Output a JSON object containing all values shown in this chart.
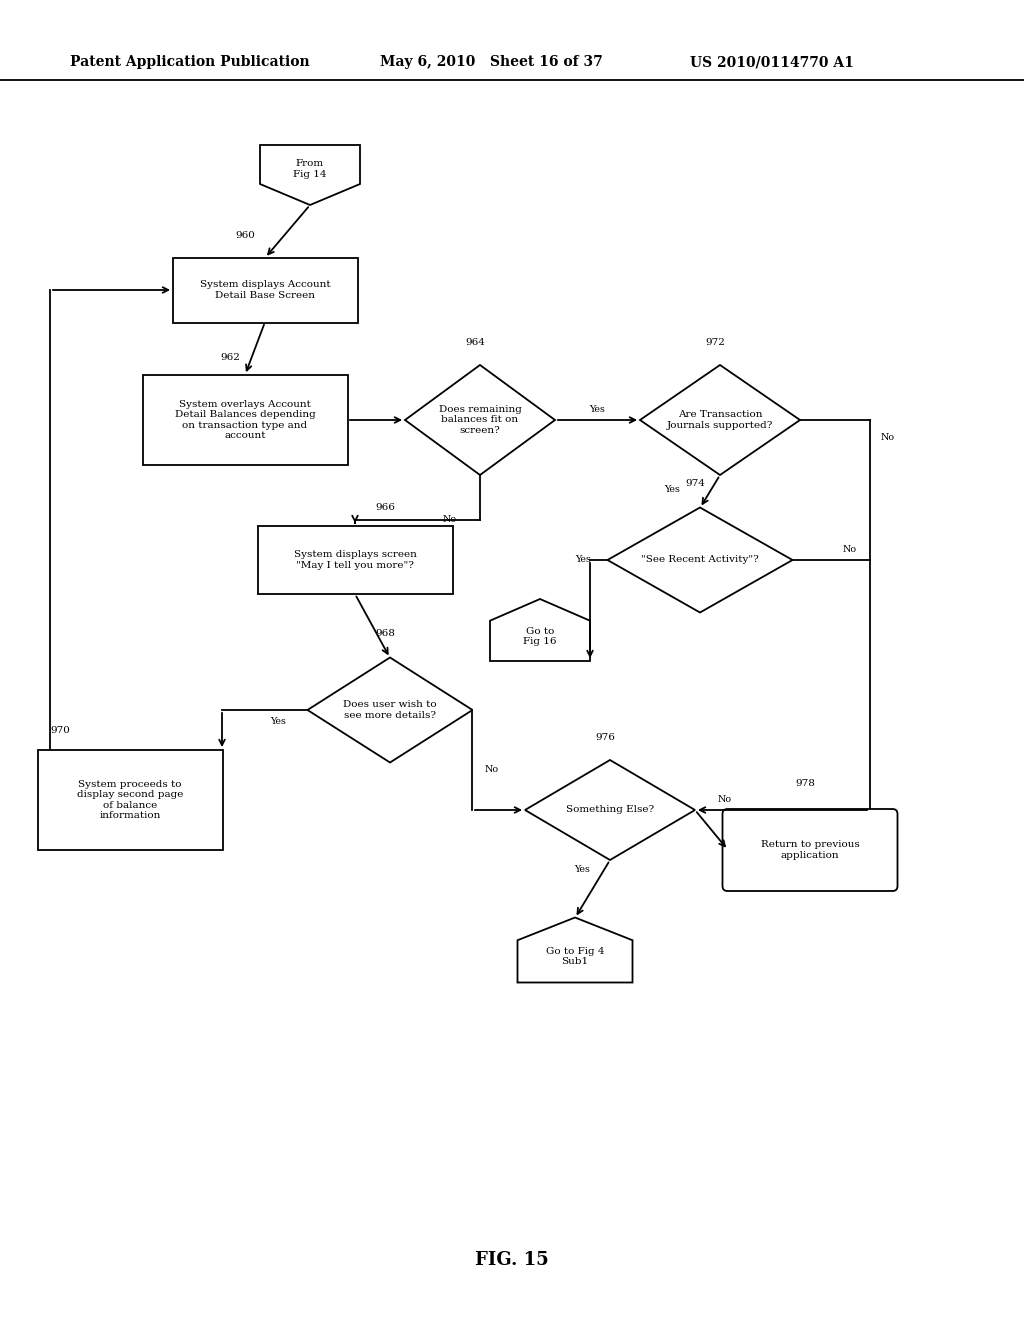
{
  "header_left": "Patent Application Publication",
  "header_mid": "May 6, 2010   Sheet 16 of 37",
  "header_right": "US 2010/0114770 A1",
  "fig_label": "FIG. 15",
  "bg": "#ffffff",
  "lw": 1.3,
  "fs": 7.5,
  "fs_num": 7.5,
  "fs_label": 6.8
}
